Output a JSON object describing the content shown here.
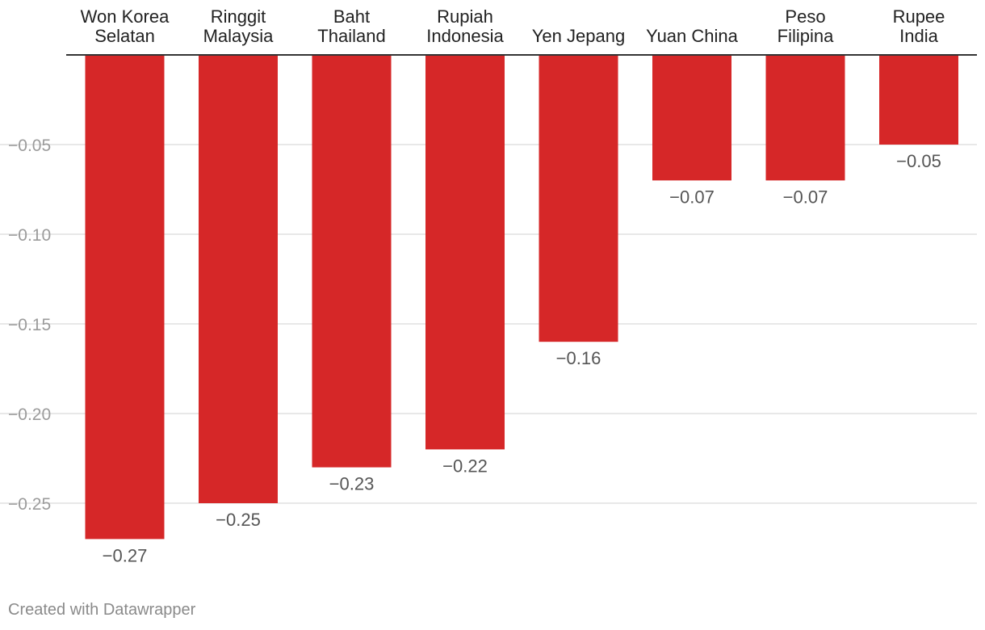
{
  "chart_data": {
    "type": "bar",
    "categories": [
      [
        "Won Korea",
        "Selatan"
      ],
      [
        "Ringgit",
        "Malaysia"
      ],
      [
        "Baht",
        "Thailand"
      ],
      [
        "Rupiah",
        "Indonesia"
      ],
      [
        "Yen Jepang"
      ],
      [
        "Yuan China"
      ],
      [
        "Peso",
        "Filipina"
      ],
      [
        "Rupee",
        "India"
      ]
    ],
    "values": [
      -0.27,
      -0.25,
      -0.23,
      -0.22,
      -0.16,
      -0.07,
      -0.07,
      -0.05
    ],
    "value_labels": [
      "−0.27",
      "−0.25",
      "−0.23",
      "−0.22",
      "−0.16",
      "−0.07",
      "−0.07",
      "−0.05"
    ],
    "y_ticks": [
      -0.05,
      -0.1,
      -0.15,
      -0.2,
      -0.25
    ],
    "y_tick_labels": [
      "−0.05",
      "−0.10",
      "−0.15",
      "−0.20",
      "−0.25"
    ],
    "ylim": [
      -0.27,
      0
    ],
    "title": "",
    "xlabel": "",
    "ylabel": "",
    "grid": true,
    "colors": {
      "bar": "#d62728",
      "grid": "#e0e0e0",
      "baseline": "#333333"
    }
  },
  "credit": "Created with Datawrapper"
}
